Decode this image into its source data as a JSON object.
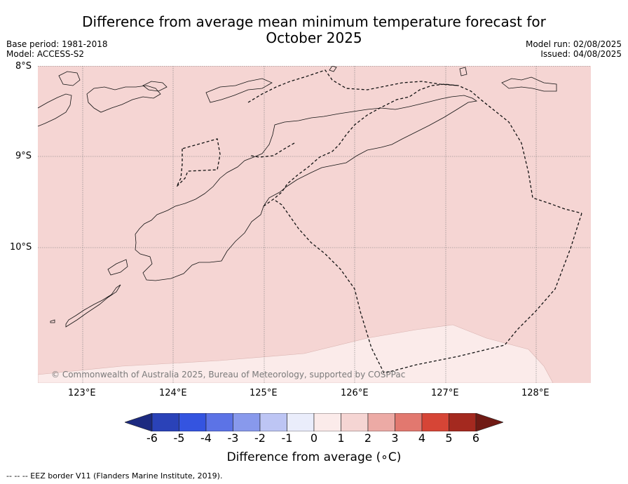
{
  "title": {
    "line1": "Difference from average mean minimum temperature forecast for",
    "line2": "October 2025"
  },
  "meta": {
    "base_period": "Base period: 1981-2018",
    "model": "Model: ACCESS-S2",
    "model_run": "Model run: 02/08/2025",
    "issued": "Issued: 04/08/2025"
  },
  "map": {
    "lat_labels": [
      "8°S",
      "9°S",
      "10°S"
    ],
    "lon_labels": [
      "123°E",
      "124°E",
      "125°E",
      "126°E",
      "127°E",
      "128°E"
    ],
    "copyright": "© Commonwealth of Australia 2025, Bureau of Meteorology, supported by COSPPac",
    "field": "anomaly between 1 and 2 °C over most of the area; 0 to 1 °C in the south-east",
    "background_color": "#f5d5d3",
    "low_band_color": "#fbebea"
  },
  "colorbar": {
    "label": "Difference from average (∘C)",
    "ticks": [
      "-6",
      "-5",
      "-4",
      "-3",
      "-2",
      "-1",
      "0",
      "1",
      "2",
      "3",
      "4",
      "5",
      "6"
    ],
    "colors": [
      "#1c2a80",
      "#2a42b8",
      "#3454e0",
      "#5c73e6",
      "#8899ec",
      "#bdc5f4",
      "#eaedfb",
      "#fbebea",
      "#f5d5d3",
      "#ecaaa5",
      "#e2786f",
      "#d64536",
      "#a4291f",
      "#701a14"
    ]
  },
  "footnote": "-- -- -- EEZ border V11 (Flanders Marine Institute, 2019)."
}
